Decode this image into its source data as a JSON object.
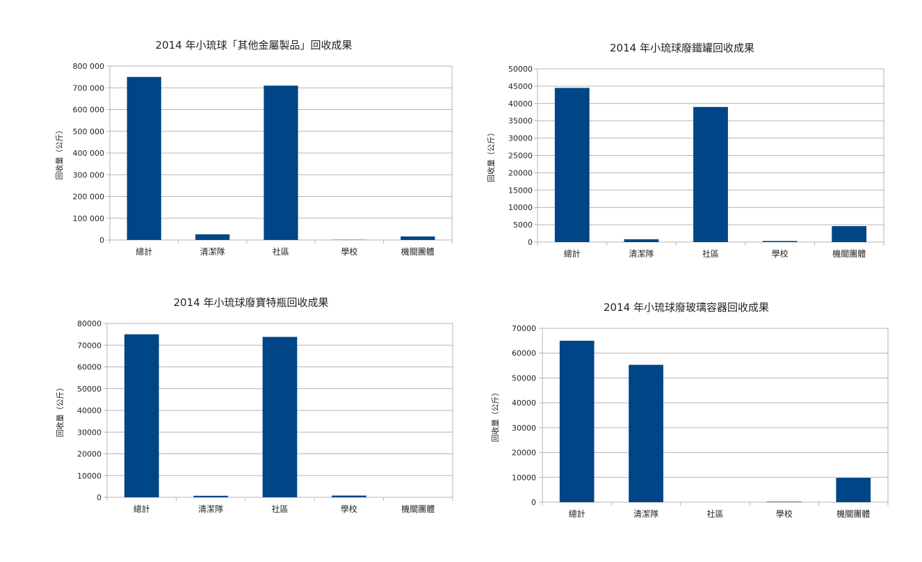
{
  "chart_data": [
    {
      "type": "bar",
      "title": "2014 年小琉球「其他金屬製品」回收成果",
      "ylabel": "回收量（公斤）",
      "categories": [
        "總計",
        "清潔隊",
        "社區",
        "學校",
        "機關團體"
      ],
      "values": [
        750000,
        26000,
        710000,
        1000,
        16000
      ],
      "ylim": [
        0,
        800000
      ],
      "yticks": [
        0,
        100000,
        200000,
        300000,
        400000,
        500000,
        600000,
        700000,
        800000
      ],
      "ytick_labels": [
        "0",
        "100 000",
        "200 000",
        "300 000",
        "400 000",
        "500 000",
        "600 000",
        "700 000",
        "800 000"
      ],
      "grid": true,
      "color": "#004586"
    },
    {
      "type": "bar",
      "title": "2014 年小琉球廢鐵罐回收成果",
      "ylabel": "回收量（公斤）",
      "categories": [
        "總計",
        "清潔隊",
        "社區",
        "學校",
        "機關團體"
      ],
      "values": [
        44500,
        800,
        39000,
        300,
        4600
      ],
      "ylim": [
        0,
        50000
      ],
      "yticks": [
        0,
        5000,
        10000,
        15000,
        20000,
        25000,
        30000,
        35000,
        40000,
        45000,
        50000
      ],
      "ytick_labels": [
        "0",
        "5000",
        "10000",
        "15000",
        "20000",
        "25000",
        "30000",
        "35000",
        "40000",
        "45000",
        "50000"
      ],
      "grid": true,
      "color": "#004586"
    },
    {
      "type": "bar",
      "title": "2014 年小琉球廢寶特瓶回收成果",
      "ylabel": "回收量（公斤）",
      "categories": [
        "總計",
        "清潔隊",
        "社區",
        "學校",
        "機關團體"
      ],
      "values": [
        75000,
        700,
        73800,
        800,
        0
      ],
      "ylim": [
        0,
        80000
      ],
      "yticks": [
        0,
        10000,
        20000,
        30000,
        40000,
        50000,
        60000,
        70000,
        80000
      ],
      "ytick_labels": [
        "0",
        "10000",
        "20000",
        "30000",
        "40000",
        "50000",
        "60000",
        "70000",
        "80000"
      ],
      "grid": true,
      "color": "#004586"
    },
    {
      "type": "bar",
      "title": "2014 年小琉球廢玻璃容器回收成果",
      "ylabel": "回收量（公斤）",
      "categories": [
        "總計",
        "清潔隊",
        "社區",
        "學校",
        "機關團體"
      ],
      "values": [
        65000,
        55300,
        0,
        200,
        9800
      ],
      "ylim": [
        0,
        70000
      ],
      "yticks": [
        0,
        10000,
        20000,
        30000,
        40000,
        50000,
        60000,
        70000
      ],
      "ytick_labels": [
        "0",
        "10000",
        "20000",
        "30000",
        "40000",
        "50000",
        "60000",
        "70000"
      ],
      "grid": true,
      "color": "#004586"
    }
  ]
}
